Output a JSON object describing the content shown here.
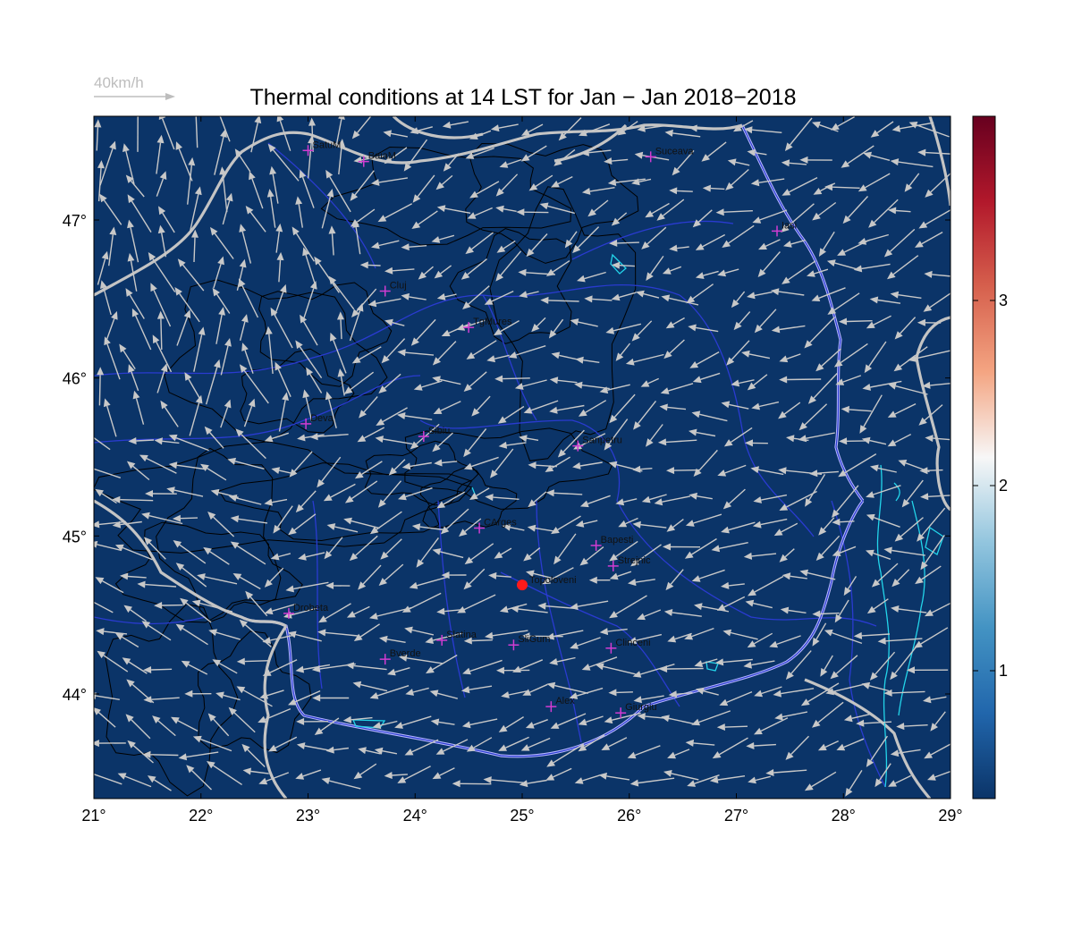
{
  "title": "Thermal conditions at 14 LST for Jan − Jan  2018−2018",
  "wind_scale_label": "40km/h",
  "colors": {
    "map_bg": "#0b3468",
    "arrow": "#c8c8c8",
    "border": "#c4c4c4",
    "river": "#2a3bd0",
    "danube": "#b9b9ff",
    "lakes": "#23d5ea",
    "contour": "#000000",
    "city_marker": "#d23cd2",
    "highlight": "#ff1a1a"
  },
  "x_ticks": [
    "21°",
    "22°",
    "23°",
    "24°",
    "25°",
    "26°",
    "27°",
    "28°",
    "29°"
  ],
  "y_ticks": [
    "44°",
    "45°",
    "46°",
    "47°"
  ],
  "colorbar": {
    "ticks": [
      "1",
      "2",
      "3"
    ],
    "stops": [
      "#0b3468",
      "#2166ac",
      "#4393c3",
      "#92c5de",
      "#f7f7f7",
      "#f4a582",
      "#d6604d",
      "#b2182b",
      "#67001f"
    ]
  },
  "cities": [
    {
      "name": "SatuM",
      "lon": 23.0,
      "lat": 47.44
    },
    {
      "name": "BaiaM",
      "lon": 23.52,
      "lat": 47.37
    },
    {
      "name": "Suceava",
      "lon": 26.2,
      "lat": 47.4
    },
    {
      "name": "Iasi",
      "lon": 27.38,
      "lat": 46.93
    },
    {
      "name": "Cluj",
      "lon": 23.72,
      "lat": 46.55
    },
    {
      "name": "TgMures",
      "lon": 24.5,
      "lat": 46.32
    },
    {
      "name": "Deva",
      "lon": 22.98,
      "lat": 45.71
    },
    {
      "name": "Sibiu",
      "lon": 24.08,
      "lat": 45.63
    },
    {
      "name": "Sanpetru",
      "lon": 25.52,
      "lat": 45.57
    },
    {
      "name": "CArges",
      "lon": 24.6,
      "lat": 45.05
    },
    {
      "name": "Bapesti",
      "lon": 25.69,
      "lat": 44.94
    },
    {
      "name": "Strejnic",
      "lon": 25.85,
      "lat": 44.81
    },
    {
      "name": "Drobeta",
      "lon": 22.82,
      "lat": 44.51
    },
    {
      "name": "Slatina",
      "lon": 24.25,
      "lat": 44.34
    },
    {
      "name": "SliGum",
      "lon": 24.92,
      "lat": 44.31
    },
    {
      "name": "Clinceni",
      "lon": 25.83,
      "lat": 44.29
    },
    {
      "name": "Bverde",
      "lon": 23.72,
      "lat": 44.22
    },
    {
      "name": "Alex",
      "lon": 25.27,
      "lat": 43.92
    },
    {
      "name": "Giurgiu",
      "lon": 25.92,
      "lat": 43.88
    }
  ],
  "highlight": {
    "name": "Topoloveni",
    "lon": 25.0,
    "lat": 44.69
  }
}
